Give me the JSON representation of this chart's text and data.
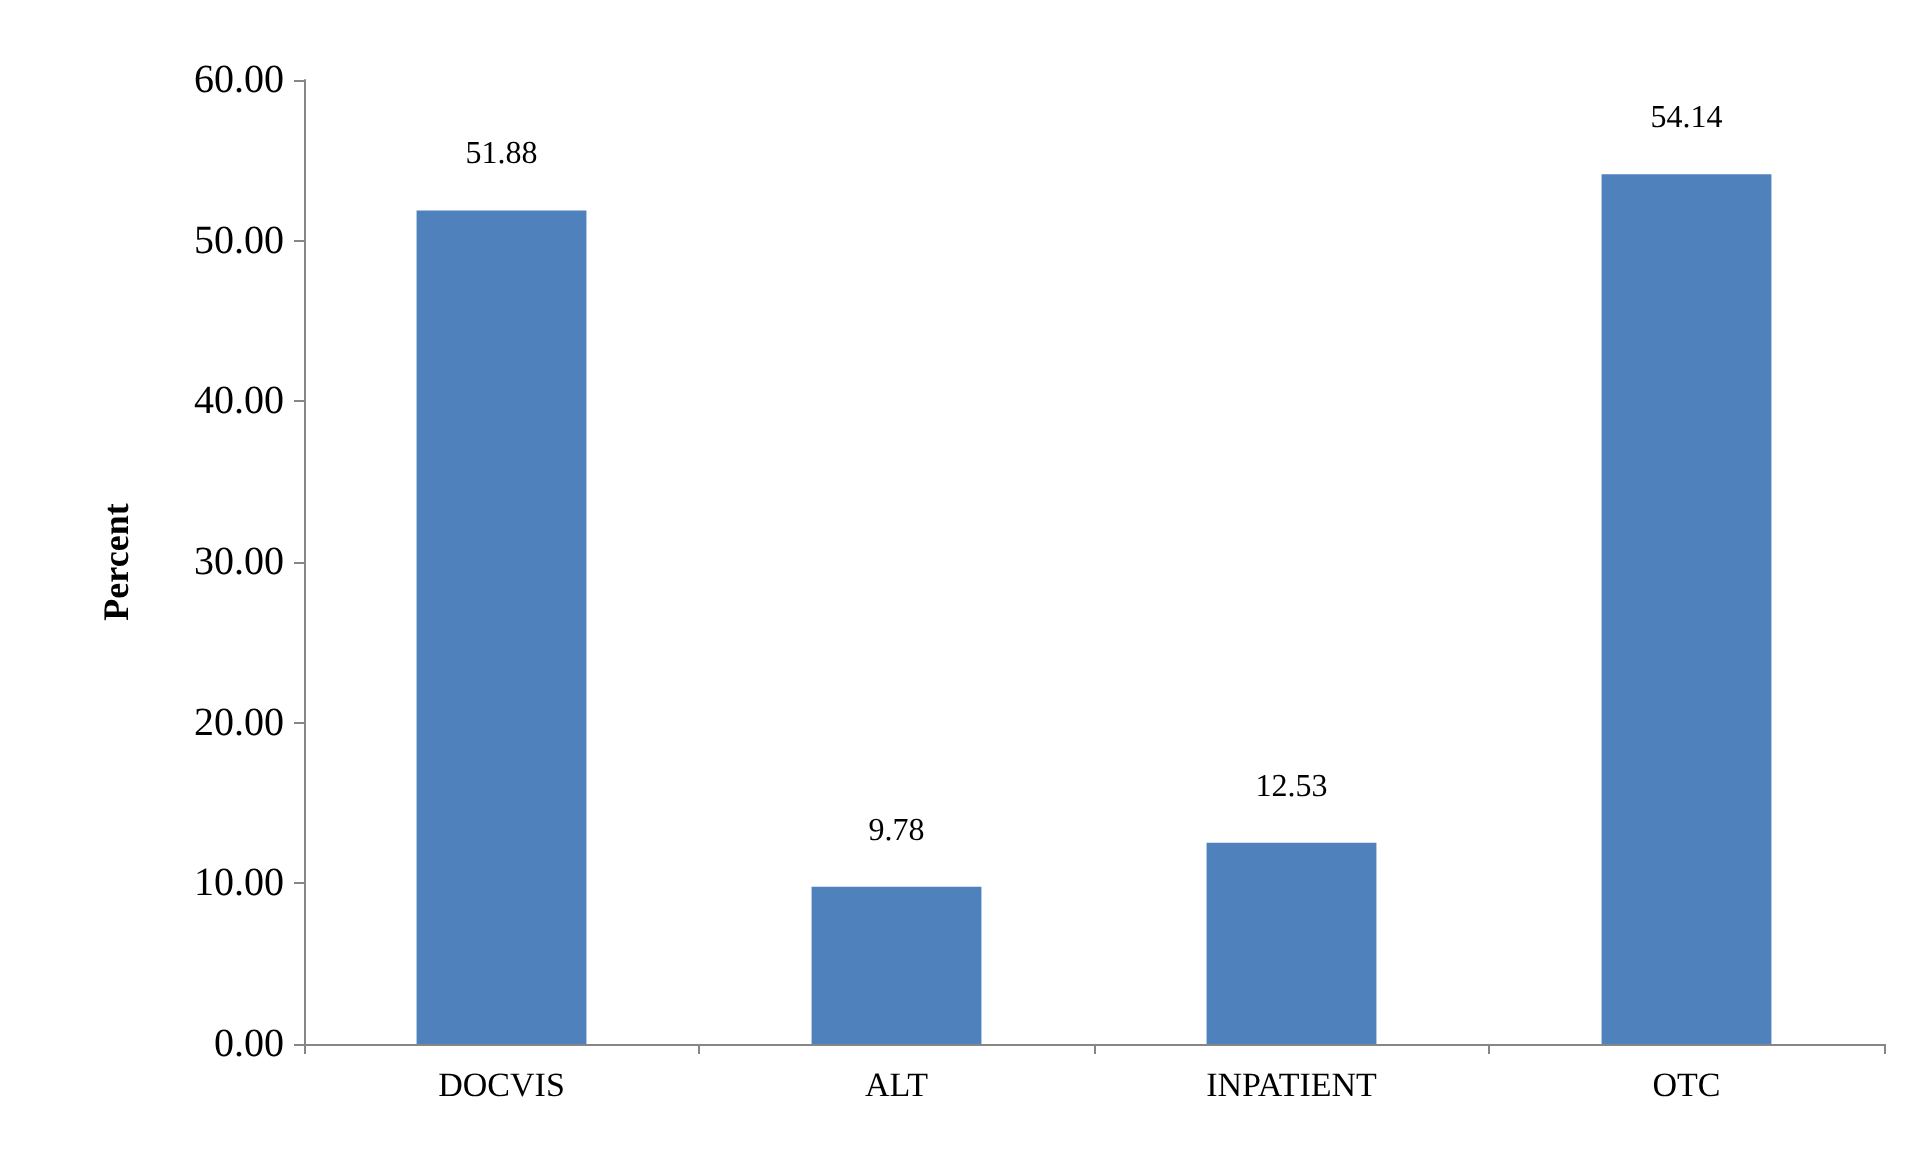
{
  "chart_data": {
    "type": "bar",
    "ylabel": "Percent",
    "categories": [
      "DOCVIS",
      "ALT",
      "INPATIENT",
      "OTC"
    ],
    "values": [
      51.88,
      9.78,
      12.53,
      54.14
    ],
    "color": "#4f81bd",
    "ylim": [
      0,
      60
    ],
    "yticks": [
      {
        "value": 0,
        "label": "0.00"
      },
      {
        "value": 10,
        "label": "10.00"
      },
      {
        "value": 20,
        "label": "20.00"
      },
      {
        "value": 30,
        "label": "30.00"
      },
      {
        "value": 40,
        "label": "40.00"
      },
      {
        "value": 50,
        "label": "50.00"
      },
      {
        "value": 60,
        "label": "60.00"
      }
    ],
    "data_labels": true,
    "grid": false
  }
}
